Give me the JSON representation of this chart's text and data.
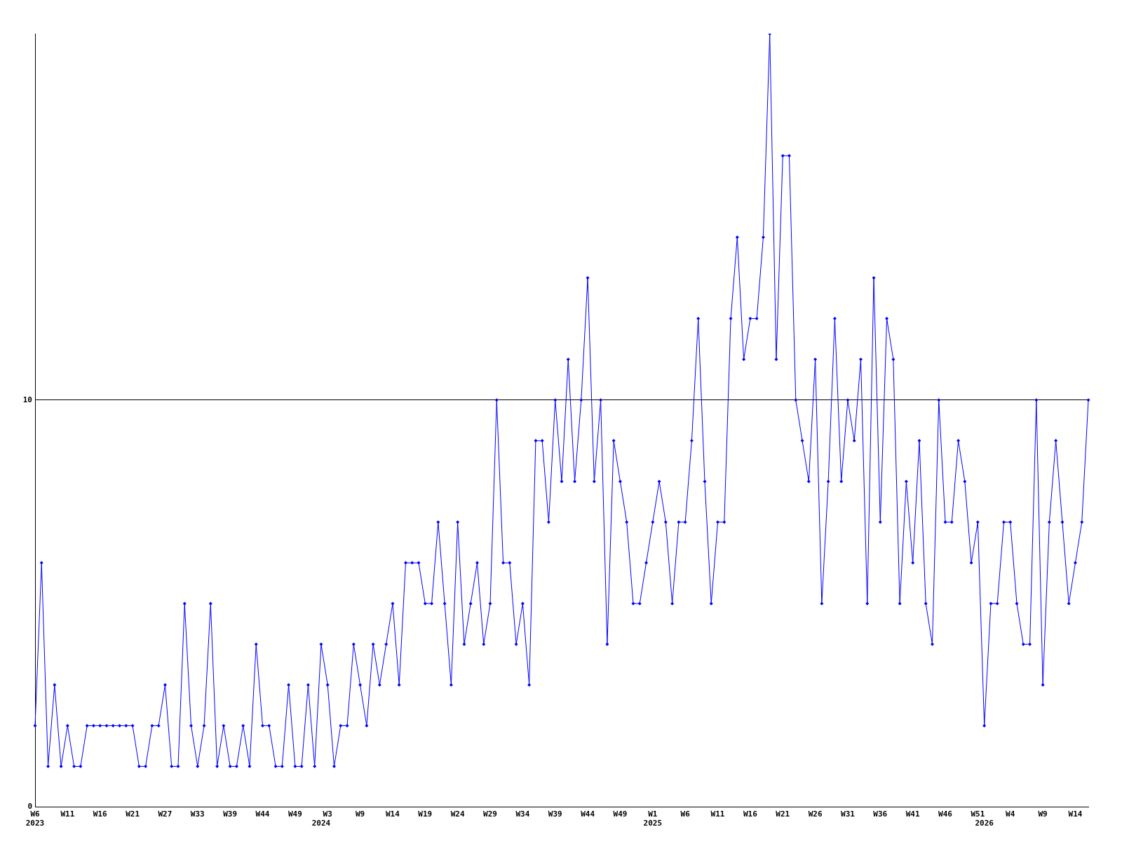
{
  "chart_data": {
    "type": "line",
    "categories": [
      "W6\n2023",
      null,
      null,
      null,
      null,
      "W11",
      null,
      null,
      null,
      null,
      "W16",
      null,
      null,
      null,
      null,
      "W21",
      null,
      null,
      null,
      null,
      "W27",
      null,
      null,
      null,
      null,
      "W33",
      null,
      null,
      null,
      null,
      "W39",
      null,
      null,
      null,
      null,
      "W44",
      null,
      null,
      null,
      null,
      "W49",
      null,
      null,
      null,
      "\n2024",
      "W3",
      null,
      null,
      null,
      null,
      "W9",
      null,
      null,
      null,
      null,
      "W14",
      null,
      null,
      null,
      null,
      "W19",
      null,
      null,
      null,
      null,
      "W24",
      null,
      null,
      null,
      null,
      "W29",
      null,
      null,
      null,
      null,
      "W34",
      null,
      null,
      null,
      null,
      "W39",
      null,
      null,
      null,
      null,
      "W44",
      null,
      null,
      null,
      null,
      "W49",
      null,
      null,
      null,
      null,
      "W1\n2025",
      null,
      null,
      null,
      null,
      "W6",
      null,
      null,
      null,
      null,
      "W11",
      null,
      null,
      null,
      null,
      "W16",
      null,
      null,
      null,
      null,
      "W21",
      null,
      null,
      null,
      null,
      "W26",
      null,
      null,
      null,
      null,
      "W31",
      null,
      null,
      null,
      null,
      "W36",
      null,
      null,
      null,
      null,
      "W41",
      null,
      null,
      null,
      null,
      "W46",
      null,
      null,
      null,
      null,
      "W51",
      "\n2026",
      null,
      null,
      null,
      "W4",
      null,
      null,
      null,
      null,
      "W9",
      null,
      null,
      null,
      null,
      "W14",
      null,
      null
    ],
    "series": [
      {
        "color": "#0000ff",
        "values": [
          2,
          6,
          1,
          3,
          1,
          2,
          1,
          1,
          2,
          2,
          2,
          2,
          2,
          2,
          2,
          2,
          1,
          1,
          2,
          2,
          3,
          1,
          1,
          5,
          2,
          1,
          2,
          5,
          1,
          2,
          1,
          1,
          2,
          1,
          4,
          2,
          2,
          1,
          1,
          3,
          1,
          1,
          3,
          1,
          4,
          3,
          1,
          2,
          2,
          4,
          3,
          2,
          4,
          3,
          4,
          5,
          3,
          6,
          6,
          6,
          5,
          5,
          7,
          5,
          3,
          7,
          4,
          5,
          6,
          4,
          5,
          10,
          6,
          6,
          4,
          5,
          3,
          9,
          9,
          7,
          10,
          8,
          11,
          8,
          10,
          13,
          8,
          10,
          4,
          9,
          8,
          7,
          5,
          5,
          6,
          7,
          8,
          7,
          5,
          7,
          7,
          9,
          12,
          8,
          5,
          7,
          7,
          12,
          14,
          11,
          12,
          12,
          14,
          19,
          11,
          16,
          16,
          10,
          9,
          8,
          11,
          5,
          8,
          12,
          8,
          10,
          9,
          11,
          5,
          13,
          7,
          12,
          11,
          5,
          8,
          6,
          9,
          5,
          4,
          10,
          7,
          7,
          9,
          8,
          6,
          7,
          2,
          5,
          5,
          7,
          7,
          5,
          4,
          4,
          10,
          3,
          7,
          9,
          7,
          5,
          6,
          7,
          10
        ]
      }
    ],
    "ylim": [
      0,
      19
    ],
    "yticks": [
      0,
      10
    ],
    "grid": "y",
    "legend": false,
    "marker": "diamond",
    "line_style": "solid"
  }
}
